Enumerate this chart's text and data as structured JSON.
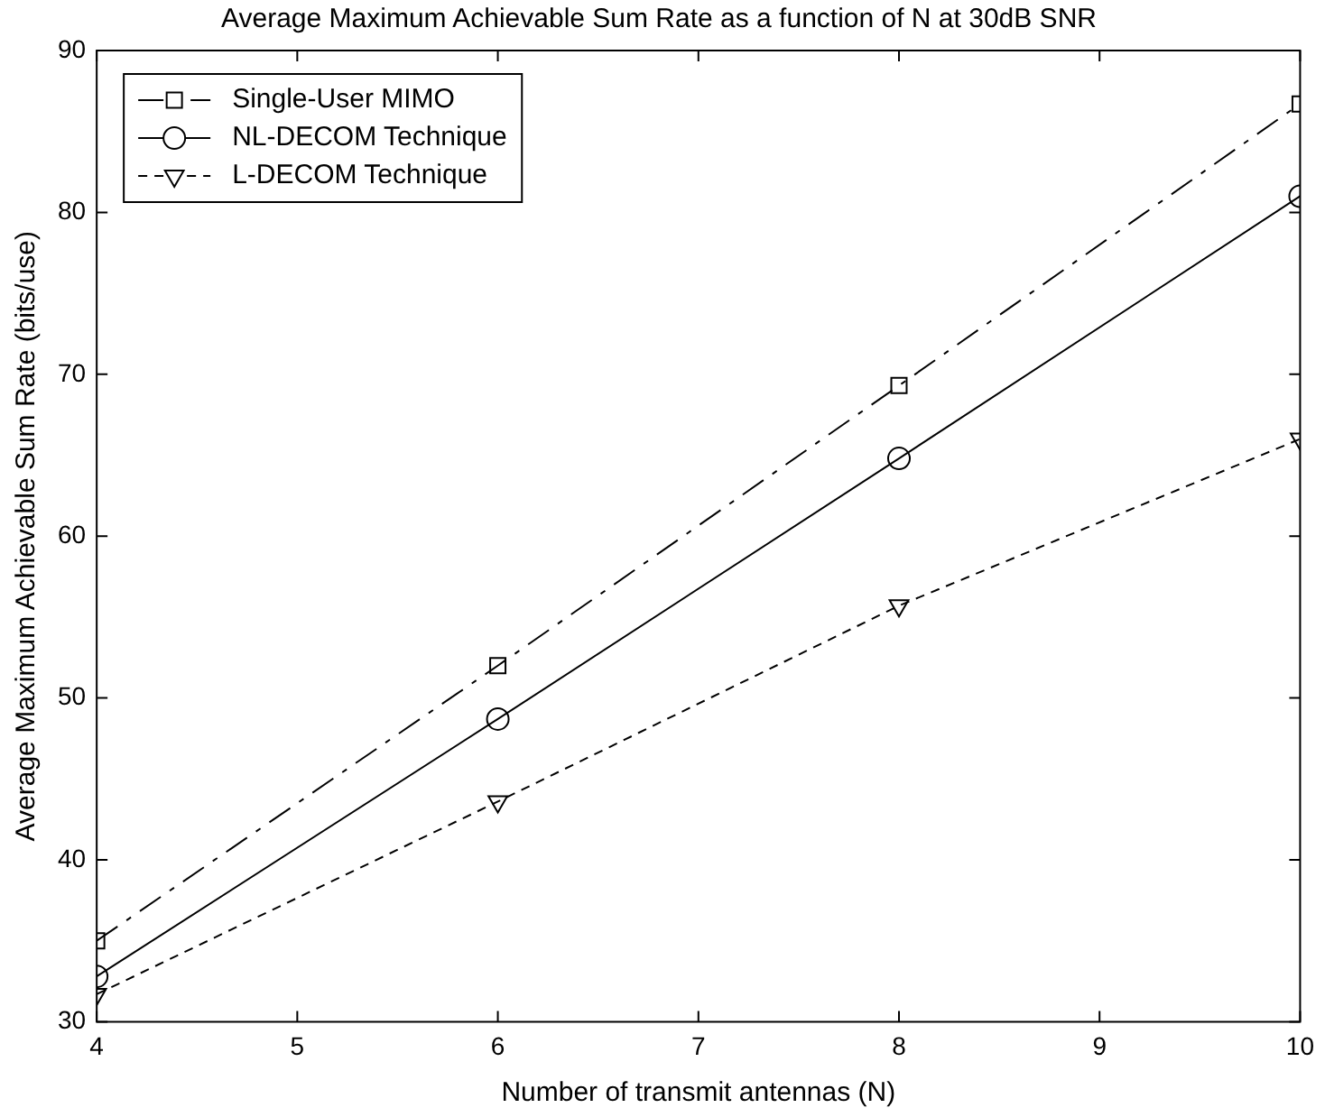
{
  "chart_data": {
    "type": "line",
    "title": "Average Maximum Achievable Sum Rate as a function of N at 30dB SNR",
    "xlabel": "Number of transmit antennas (N)",
    "ylabel": "Average Maximum Achievable Sum Rate (bits/use)",
    "x": [
      4,
      6,
      8,
      10
    ],
    "xlim": [
      4,
      10
    ],
    "xticks": [
      4,
      5,
      6,
      7,
      8,
      9,
      10
    ],
    "ylim": [
      30,
      90
    ],
    "yticks": [
      30,
      40,
      50,
      60,
      70,
      80,
      90
    ],
    "grid": false,
    "legend": "top left",
    "series": [
      {
        "name": "Single-User MIMO",
        "color": "#000000",
        "values": [
          35,
          52,
          69.3,
          86.7
        ],
        "marker": "square",
        "line_style": "dashed"
      },
      {
        "name": "NL-DECOM Technique",
        "color": "#000000",
        "values": [
          32.8,
          48.7,
          64.8,
          81
        ],
        "marker": "circle",
        "line_style": "solid"
      },
      {
        "name": "L-DECOM Technique",
        "color": "#000000",
        "values": [
          31.7,
          43.6,
          55.7,
          66
        ],
        "marker": "triangle",
        "line_style": "dotted"
      }
    ]
  }
}
